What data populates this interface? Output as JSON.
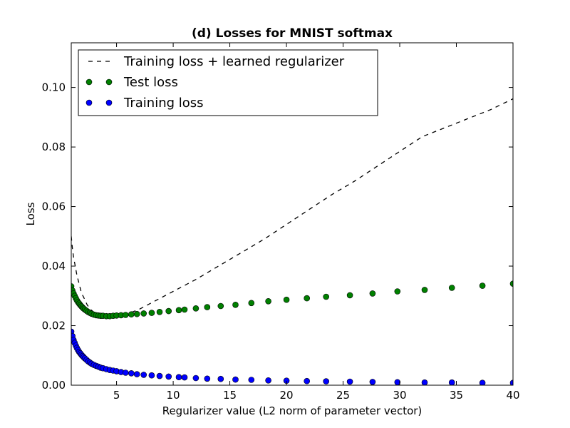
{
  "chart_data": {
    "type": "scatter",
    "title": "(d) Losses for MNIST softmax",
    "xlabel": "Regularizer value (L2 norm of parameter vector)",
    "ylabel": "Loss",
    "xlim": [
      1,
      40
    ],
    "ylim": [
      0,
      0.115
    ],
    "xticks": [
      5,
      10,
      15,
      20,
      25,
      30,
      35,
      40
    ],
    "yticks": [
      0.0,
      0.02,
      0.04,
      0.06,
      0.08,
      0.1
    ],
    "ytick_labels": [
      "0.00",
      "0.02",
      "0.04",
      "0.06",
      "0.08",
      "0.10"
    ],
    "legend_position": "top-left",
    "colors": {
      "test": "#008000",
      "train": "#0000ff",
      "dashed": "#000000"
    },
    "series": [
      {
        "name": "Training loss + learned regularizer",
        "style": "dashed-line",
        "x": [
          1.0,
          1.1,
          1.2,
          1.35,
          1.5,
          1.7,
          1.9,
          2.1,
          2.4,
          2.7,
          3.0,
          3.3,
          3.6,
          4.0,
          4.5,
          5.0,
          5.5,
          6.0,
          7.0,
          8.0,
          10.0,
          12.0,
          14.0,
          16.0,
          18.0,
          20.0,
          22.0,
          24.0,
          26.0,
          28.0,
          30.0,
          32.0,
          34.0,
          36.0,
          38.0,
          40.0
        ],
        "y": [
          0.05,
          0.046,
          0.043,
          0.04,
          0.037,
          0.034,
          0.031,
          0.0295,
          0.027,
          0.0255,
          0.0245,
          0.024,
          0.0235,
          0.0232,
          0.0231,
          0.0232,
          0.0235,
          0.024,
          0.0255,
          0.0275,
          0.0315,
          0.0355,
          0.04,
          0.0445,
          0.049,
          0.054,
          0.059,
          0.064,
          0.0685,
          0.0735,
          0.0785,
          0.0835,
          0.0865,
          0.0895,
          0.0925,
          0.0962
        ]
      },
      {
        "name": "Test loss",
        "style": "markers",
        "x": [
          1.0,
          1.1,
          1.2,
          1.3,
          1.4,
          1.5,
          1.6,
          1.7,
          1.8,
          1.9,
          2.0,
          2.1,
          2.2,
          2.35,
          2.5,
          2.65,
          2.8,
          3.0,
          3.2,
          3.4,
          3.6,
          3.8,
          4.1,
          4.4,
          4.7,
          5.0,
          5.4,
          5.8,
          6.3,
          6.8,
          7.4,
          8.1,
          8.8,
          9.6,
          10.5,
          11.0,
          12.0,
          13.0,
          14.2,
          15.5,
          16.9,
          18.4,
          20.0,
          21.8,
          23.5,
          25.6,
          27.6,
          29.8,
          32.2,
          34.6,
          37.3,
          40.0
        ],
        "y": [
          0.0332,
          0.0318,
          0.0308,
          0.03,
          0.0292,
          0.0285,
          0.0279,
          0.0274,
          0.0269,
          0.0265,
          0.0261,
          0.0257,
          0.0254,
          0.025,
          0.0246,
          0.0243,
          0.024,
          0.0237,
          0.0235,
          0.0234,
          0.0233,
          0.0233,
          0.0232,
          0.0232,
          0.0233,
          0.0234,
          0.0235,
          0.0236,
          0.0238,
          0.0239,
          0.0241,
          0.0243,
          0.0246,
          0.0249,
          0.0252,
          0.0254,
          0.0258,
          0.0262,
          0.0266,
          0.027,
          0.0276,
          0.0282,
          0.0287,
          0.0292,
          0.0297,
          0.0302,
          0.0308,
          0.0315,
          0.032,
          0.0327,
          0.0334,
          0.0341
        ]
      },
      {
        "name": "Training loss",
        "style": "markers",
        "x": [
          1.0,
          1.1,
          1.2,
          1.3,
          1.4,
          1.5,
          1.6,
          1.7,
          1.8,
          1.9,
          2.0,
          2.1,
          2.2,
          2.35,
          2.5,
          2.65,
          2.8,
          3.0,
          3.2,
          3.4,
          3.6,
          3.8,
          4.1,
          4.4,
          4.7,
          5.0,
          5.4,
          5.8,
          6.3,
          6.8,
          7.4,
          8.1,
          8.8,
          9.6,
          10.5,
          11.0,
          12.0,
          13.0,
          14.2,
          15.5,
          16.9,
          18.4,
          20.0,
          21.8,
          23.5,
          25.6,
          27.6,
          29.8,
          32.2,
          34.6,
          37.3,
          40.0
        ],
        "y": [
          0.018,
          0.0165,
          0.0152,
          0.0142,
          0.0133,
          0.0125,
          0.0118,
          0.0112,
          0.0107,
          0.0102,
          0.0098,
          0.0094,
          0.009,
          0.0085,
          0.008,
          0.0076,
          0.0072,
          0.0068,
          0.0065,
          0.0062,
          0.0059,
          0.0057,
          0.0054,
          0.0051,
          0.0049,
          0.0047,
          0.0044,
          0.0042,
          0.004,
          0.0037,
          0.0035,
          0.0033,
          0.0031,
          0.0029,
          0.0027,
          0.0026,
          0.0024,
          0.0022,
          0.0021,
          0.0019,
          0.0018,
          0.0016,
          0.0015,
          0.0014,
          0.0013,
          0.0012,
          0.0011,
          0.001,
          0.0009,
          0.0009,
          0.0008,
          0.0008
        ]
      }
    ]
  }
}
